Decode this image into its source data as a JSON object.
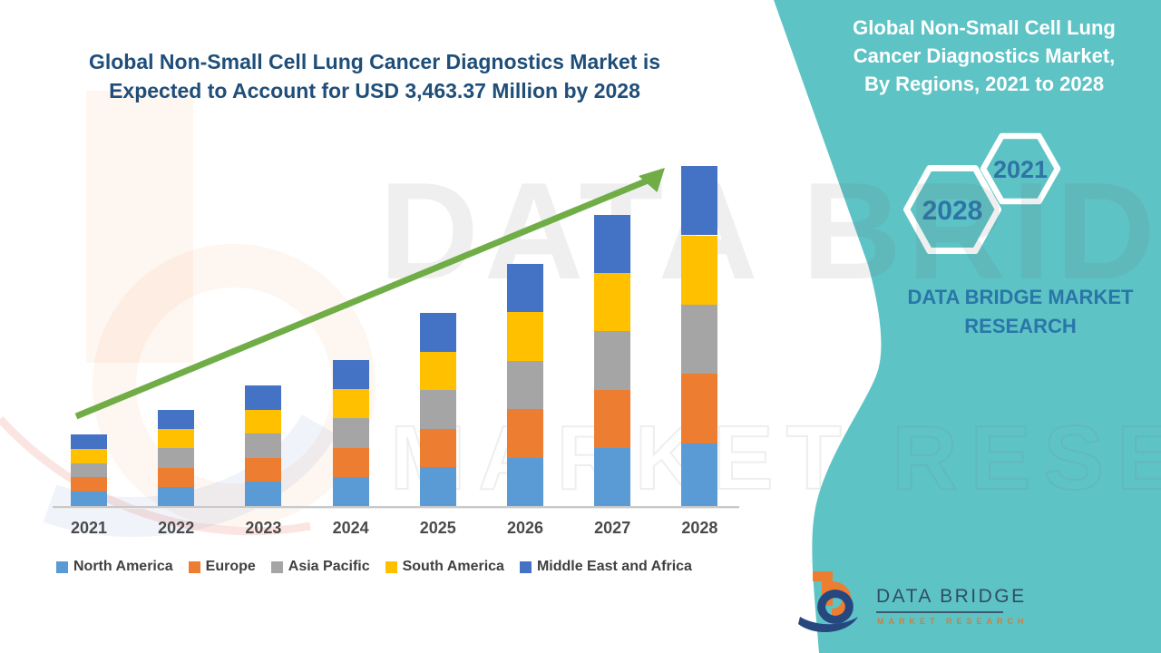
{
  "colors": {
    "panel_teal": "#5ec3c5",
    "title_blue": "#1f4e79",
    "panel_text_white": "#ffffff",
    "hexagon_year_blue": "#2e74a6",
    "brand_caption_blue": "#2976a8",
    "arrow_green": "#70ad47",
    "axis_label_gray": "#4a4a4a",
    "north_america": "#5b9bd5",
    "europe": "#ed7d31",
    "asia_pacific": "#a5a5a5",
    "south_america": "#ffc000",
    "middle_east_africa": "#4472c4"
  },
  "main_title": {
    "line1": "Global Non-Small Cell Lung Cancer Diagnostics Market is",
    "line2": "Expected to Account for USD 3,463.37 Million by 2028"
  },
  "side_panel": {
    "title_lines": [
      "Global Non-Small Cell Lung",
      "Cancer Diagnostics Market,",
      "By Regions, 2021 to 2028"
    ],
    "hexagons": [
      {
        "year": "2021"
      },
      {
        "year": "2028"
      }
    ],
    "brand_caption": "DATA BRIDGE MARKET RESEARCH"
  },
  "logo": {
    "name": "DATA BRIDGE",
    "tagline": "MARKET RESEARCH"
  },
  "watermarks": {
    "big_text": "DATA BRIDGE",
    "outline_text": "MARKET RESEARCH"
  },
  "chart_data": {
    "type": "bar",
    "stacked": true,
    "title": "Global Non-Small Cell Lung Cancer Diagnostics Market, By Regions, 2021 to 2028",
    "unit": "USD Million",
    "categories": [
      "2021",
      "2022",
      "2023",
      "2024",
      "2025",
      "2026",
      "2027",
      "2028"
    ],
    "series": [
      {
        "name": "North America",
        "color": "#5b9bd5",
        "values": [
          145.9,
          195.8,
          245.7,
          297.4,
          393.5,
          493.2,
          593.0,
          640.0
        ]
      },
      {
        "name": "Europe",
        "color": "#ed7d31",
        "values": [
          145.9,
          195.8,
          245.7,
          297.4,
          393.5,
          493.2,
          593.0,
          705.84
        ]
      },
      {
        "name": "Asia Pacific",
        "color": "#a5a5a5",
        "values": [
          145.9,
          195.8,
          245.7,
          297.4,
          393.5,
          493.2,
          593.0,
          705.84
        ]
      },
      {
        "name": "South America",
        "color": "#ffc000",
        "values": [
          145.9,
          195.8,
          245.7,
          297.4,
          393.5,
          493.2,
          593.0,
          705.84
        ]
      },
      {
        "name": "Middle East and Africa",
        "color": "#4472c4",
        "values": [
          145.9,
          195.8,
          245.7,
          297.4,
          393.5,
          493.2,
          593.0,
          705.85
        ]
      }
    ],
    "totals": [
      729.5,
      979.0,
      1228.5,
      1487.0,
      1967.5,
      2466.0,
      2965.0,
      3463.37
    ],
    "final_year_total_label": "USD 3,463.37 Million by 2028",
    "ylim": [
      0,
      3600
    ],
    "grid": false,
    "legend_position": "bottom",
    "trend_arrow": true
  }
}
